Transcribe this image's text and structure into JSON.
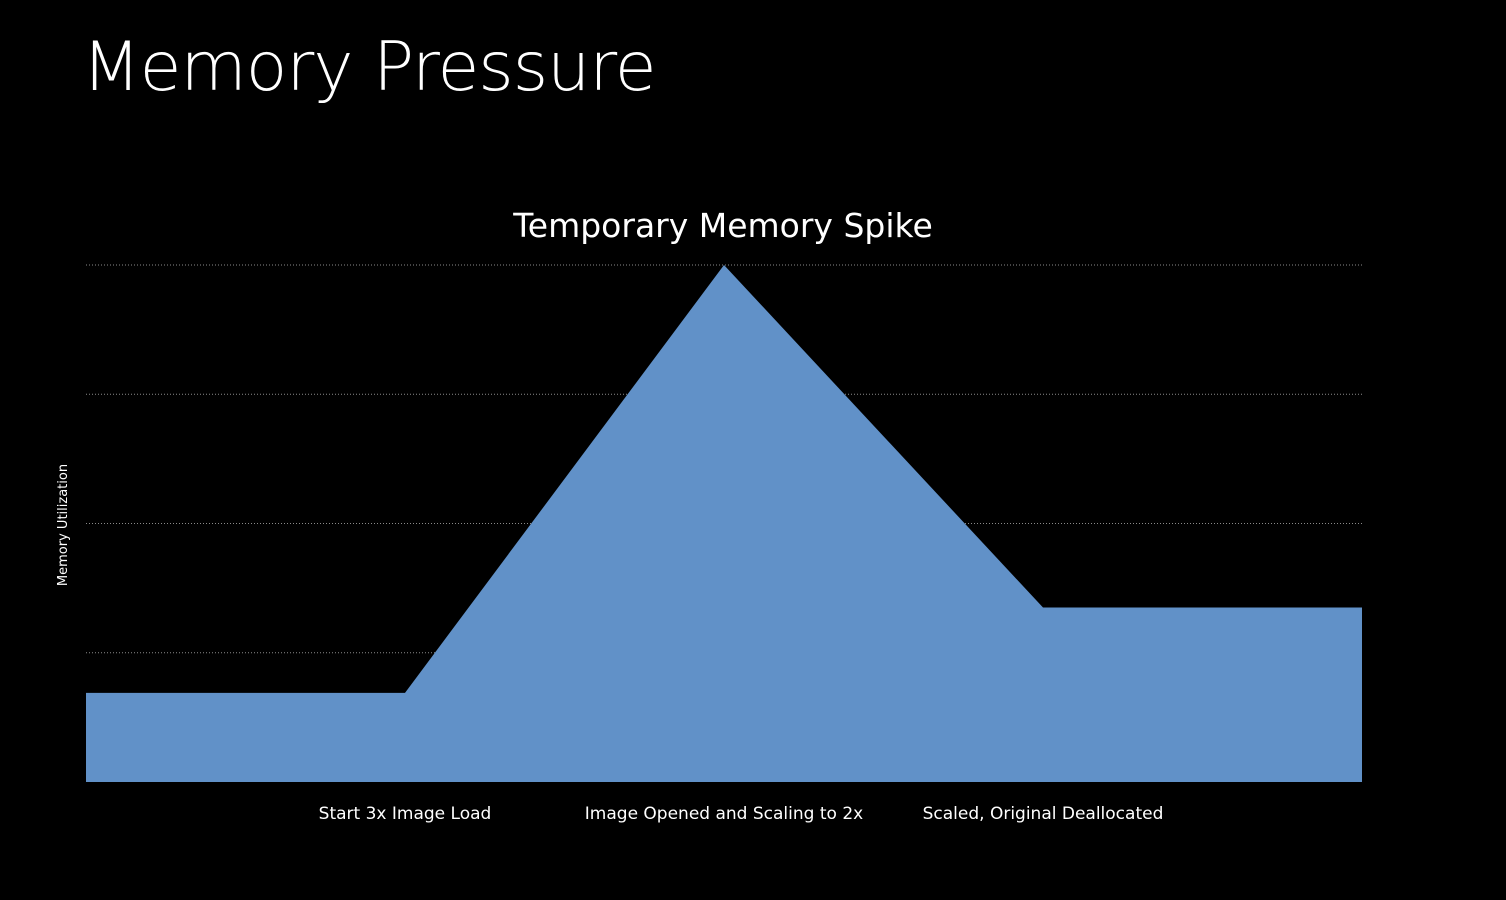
{
  "slide": {
    "title": "Memory Pressure"
  },
  "chart_data": {
    "type": "area",
    "title": "Temporary Memory Spike",
    "xlabel": "",
    "ylabel": "Memory Utilization",
    "x": [
      0,
      1,
      2,
      3,
      4
    ],
    "categories": [
      "",
      "Start 3x Image Load",
      "Image Opened and Scaling to 2x",
      "Scaled, Original Deallocated",
      ""
    ],
    "values": [
      0.69,
      0.69,
      4.0,
      1.35,
      1.35
    ],
    "ylim": [
      0,
      4
    ],
    "grid": true,
    "legend": "none",
    "colors": {
      "fill": "#6191c8",
      "grid": "#8a8a8a",
      "text": "#ffffff",
      "background": "#000000"
    }
  }
}
